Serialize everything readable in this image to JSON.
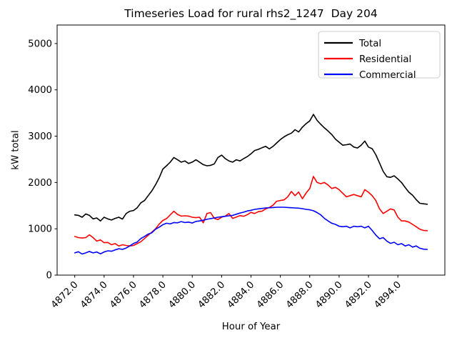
{
  "chart_data": {
    "type": "line",
    "title": "Timeseries Load for rural rhs2_1247  Day 204",
    "xlabel": "Hour of Year",
    "ylabel": "kW total",
    "xlim": [
      4870.8,
      4897.2
    ],
    "ylim": [
      0,
      5400
    ],
    "grid": false,
    "legend_position": "upper right",
    "x_ticks": [
      4872,
      4874,
      4876,
      4878,
      4880,
      4882,
      4884,
      4886,
      4888,
      4890,
      4892,
      4894
    ],
    "x_tick_labels": [
      "4872.0",
      "4874.0",
      "4876.0",
      "4878.0",
      "4880.0",
      "4882.0",
      "4884.0",
      "4886.0",
      "4888.0",
      "4890.0",
      "4892.0",
      "4894.0"
    ],
    "x_tick_rotation": 45,
    "y_ticks": [
      0,
      1000,
      2000,
      3000,
      4000,
      5000
    ],
    "y_tick_labels": [
      "0",
      "1000",
      "2000",
      "3000",
      "4000",
      "5000"
    ],
    "x_start": 4872.0,
    "x_step": 0.25,
    "n_points": 97,
    "series": [
      {
        "name": "Total",
        "color": "#000000",
        "values": [
          1300,
          1290,
          1250,
          1320,
          1290,
          1215,
          1235,
          1170,
          1250,
          1215,
          1190,
          1225,
          1250,
          1210,
          1330,
          1380,
          1395,
          1455,
          1560,
          1610,
          1715,
          1820,
          1950,
          2100,
          2290,
          2360,
          2440,
          2540,
          2490,
          2440,
          2465,
          2410,
          2440,
          2490,
          2440,
          2385,
          2360,
          2370,
          2400,
          2540,
          2590,
          2515,
          2465,
          2440,
          2490,
          2465,
          2515,
          2560,
          2620,
          2690,
          2715,
          2750,
          2780,
          2725,
          2780,
          2855,
          2925,
          2985,
          3030,
          3065,
          3140,
          3090,
          3195,
          3270,
          3330,
          3470,
          3340,
          3255,
          3180,
          3110,
          3035,
          2935,
          2870,
          2805,
          2815,
          2830,
          2765,
          2745,
          2805,
          2895,
          2765,
          2730,
          2600,
          2420,
          2240,
          2125,
          2110,
          2145,
          2075,
          2000,
          1890,
          1790,
          1725,
          1630,
          1550,
          1540,
          1530
        ]
      },
      {
        "name": "Residential",
        "color": "#ff0000",
        "values": [
          835,
          810,
          800,
          810,
          870,
          810,
          735,
          760,
          700,
          705,
          655,
          680,
          630,
          655,
          640,
          630,
          640,
          680,
          720,
          790,
          860,
          930,
          1000,
          1100,
          1180,
          1220,
          1300,
          1380,
          1310,
          1275,
          1280,
          1275,
          1250,
          1240,
          1250,
          1130,
          1330,
          1350,
          1225,
          1200,
          1250,
          1275,
          1330,
          1225,
          1255,
          1285,
          1270,
          1305,
          1355,
          1330,
          1370,
          1380,
          1430,
          1460,
          1510,
          1595,
          1610,
          1625,
          1690,
          1805,
          1715,
          1795,
          1650,
          1770,
          1870,
          2130,
          2000,
          1975,
          2000,
          1945,
          1870,
          1895,
          1845,
          1765,
          1690,
          1715,
          1740,
          1715,
          1690,
          1845,
          1790,
          1715,
          1610,
          1430,
          1330,
          1380,
          1430,
          1405,
          1250,
          1170,
          1170,
          1145,
          1095,
          1045,
          990,
          965,
          960
        ]
      },
      {
        "name": "Commercial",
        "color": "#0000ff",
        "values": [
          480,
          505,
          455,
          480,
          510,
          480,
          500,
          460,
          500,
          525,
          515,
          545,
          570,
          555,
          585,
          630,
          685,
          715,
          790,
          835,
          885,
          915,
          990,
          1035,
          1090,
          1120,
          1105,
          1135,
          1130,
          1155,
          1135,
          1145,
          1125,
          1160,
          1170,
          1185,
          1205,
          1220,
          1235,
          1250,
          1260,
          1270,
          1280,
          1290,
          1315,
          1340,
          1360,
          1385,
          1400,
          1420,
          1430,
          1440,
          1450,
          1455,
          1460,
          1465,
          1465,
          1465,
          1460,
          1455,
          1450,
          1445,
          1435,
          1420,
          1410,
          1390,
          1350,
          1300,
          1225,
          1170,
          1120,
          1095,
          1055,
          1045,
          1055,
          1020,
          1055,
          1045,
          1055,
          1020,
          1055,
          965,
          865,
          785,
          810,
          735,
          685,
          710,
          655,
          680,
          630,
          655,
          605,
          630,
          580,
          560,
          555
        ]
      }
    ],
    "frame_color": "#000000",
    "legend_border_color": "#cccccc"
  }
}
